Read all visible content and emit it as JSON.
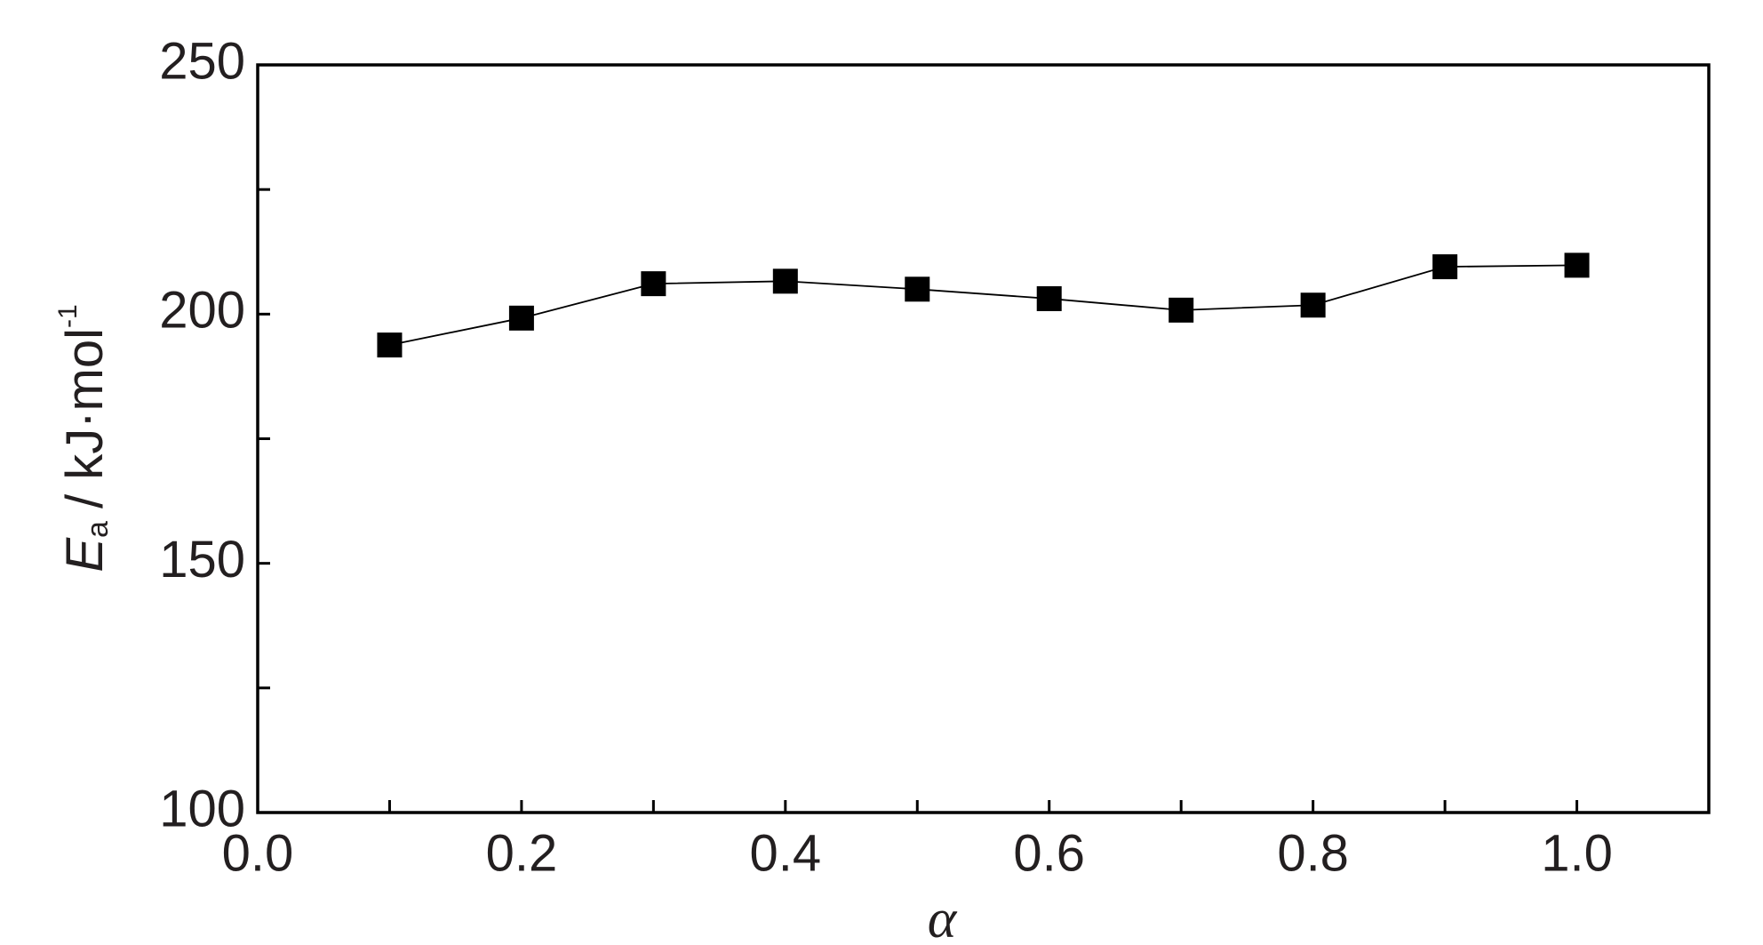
{
  "chart_data": {
    "type": "line",
    "xlabel": "α",
    "ylabel": {
      "symbol": "E",
      "subscript": "a",
      "unit": "/ kJ·mol",
      "superscript": "-1"
    },
    "x": [
      0.1,
      0.2,
      0.3,
      0.4,
      0.5,
      0.6,
      0.7,
      0.8,
      0.9,
      1.0
    ],
    "values": [
      193.8,
      199.2,
      206.1,
      206.6,
      205.0,
      203.1,
      200.8,
      201.8,
      209.5,
      209.8
    ],
    "color": "#000000",
    "marker": "square",
    "xlim": [
      0,
      1.1
    ],
    "xticks": [
      {
        "value": 0,
        "label": "0.0"
      },
      0.2,
      0.4,
      0.6,
      0.8,
      {
        "value": 1,
        "label": "1.0"
      }
    ],
    "xminorticks": [
      0.1,
      0.3,
      0.5,
      0.7,
      0.9
    ],
    "ylim": [
      100,
      250
    ],
    "yticks": [
      100,
      150,
      200,
      250
    ],
    "yminorticks": [
      125,
      175,
      225
    ],
    "grid": false
  }
}
